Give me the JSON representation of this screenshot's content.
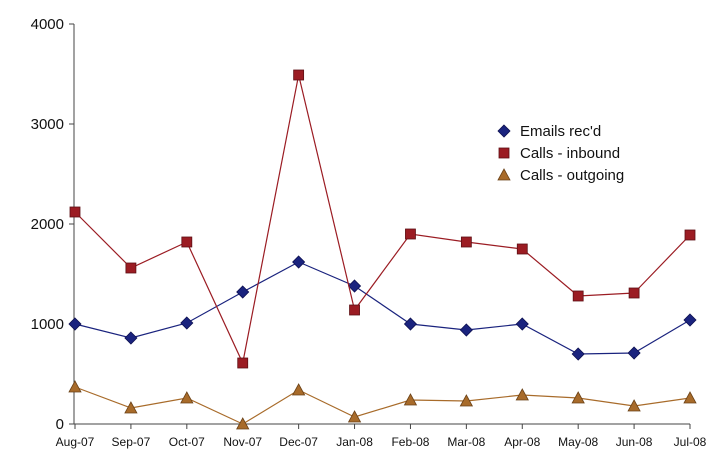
{
  "chart_data": {
    "type": "line",
    "categories": [
      "Aug-07",
      "Sep-07",
      "Oct-07",
      "Nov-07",
      "Dec-07",
      "Jan-08",
      "Feb-08",
      "Mar-08",
      "Apr-08",
      "May-08",
      "Jun-08",
      "Jul-08"
    ],
    "y_ticks": [
      "0",
      "1000",
      "2000",
      "3000",
      "4000"
    ],
    "ylim": [
      0,
      4000
    ],
    "grid": false,
    "legend_position": "right",
    "series": [
      {
        "name": "Emails rec'd",
        "color": "#1a237e",
        "marker": "diamond",
        "values": [
          1000,
          860,
          1010,
          1320,
          1620,
          1380,
          1000,
          940,
          1000,
          700,
          710,
          1040
        ]
      },
      {
        "name": "Calls - inbound",
        "color": "#9b1c23",
        "marker": "square",
        "values": [
          2120,
          1560,
          1820,
          610,
          3490,
          1140,
          1900,
          1820,
          1750,
          1280,
          1310,
          1890
        ]
      },
      {
        "name": "Calls - outgoing",
        "color": "#a86b2a",
        "marker": "triangle",
        "values": [
          370,
          160,
          260,
          0,
          340,
          70,
          240,
          230,
          290,
          260,
          180,
          260
        ]
      }
    ]
  }
}
